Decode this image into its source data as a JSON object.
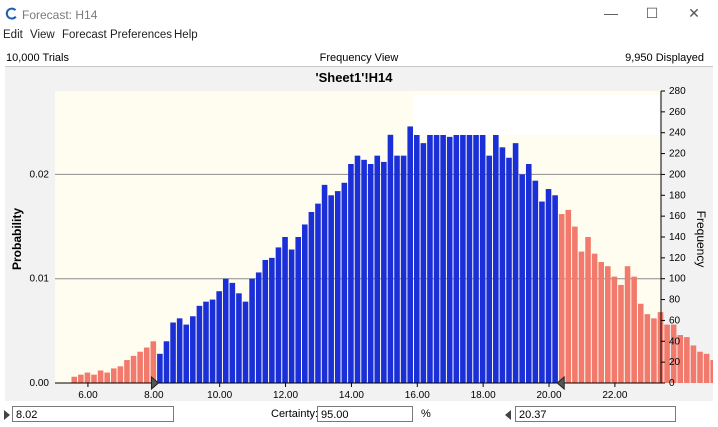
{
  "window": {
    "title": "Forecast: H14",
    "minimize": "—",
    "maximize": "☐",
    "close": "✕"
  },
  "menu": [
    "Edit",
    "View",
    "Forecast",
    "Preferences",
    "Help"
  ],
  "info": {
    "trials": "10,000 Trials",
    "view": "Frequency View",
    "displayed": "9,950 Displayed"
  },
  "colors": {
    "bar": "#1a2fd8",
    "tail": "#f27a6c",
    "plot_bg": "#fefdef",
    "panel_bg": "#f2f2f2"
  },
  "chart_data": {
    "type": "bar",
    "title": "'Sheet1'!H14",
    "ylabel": "Probability",
    "y2label": "Frequency",
    "xlim": [
      5.0,
      23.4
    ],
    "ylim": [
      0,
      280
    ],
    "xticks": [
      "6.00",
      "8.00",
      "10.00",
      "12.00",
      "14.00",
      "16.00",
      "18.00",
      "20.00",
      "22.00"
    ],
    "xtick_values": [
      6,
      8,
      10,
      12,
      14,
      16,
      18,
      20,
      22
    ],
    "yticks_left": [
      "0.00",
      "0.01",
      "0.02"
    ],
    "yticks_left_freq": [
      0,
      100,
      200
    ],
    "yticks_right": [
      "0",
      "20",
      "40",
      "60",
      "80",
      "100",
      "120",
      "140",
      "160",
      "180",
      "200",
      "220",
      "240",
      "260",
      "280"
    ],
    "grid": "horizontal at 0.01 and 0.02",
    "lower_bound": 8.02,
    "upper_bound": 20.37,
    "bin_start": 5.5,
    "bin_width": 0.2,
    "frequencies": [
      6,
      8,
      10,
      8,
      12,
      10,
      14,
      16,
      22,
      26,
      30,
      34,
      40,
      28,
      40,
      58,
      62,
      56,
      64,
      74,
      78,
      80,
      88,
      100,
      96,
      86,
      78,
      100,
      106,
      118,
      120,
      130,
      140,
      128,
      140,
      152,
      164,
      172,
      190,
      180,
      184,
      192,
      210,
      218,
      214,
      210,
      218,
      212,
      238,
      218,
      218,
      246,
      242,
      230,
      270,
      262,
      238,
      236,
      270,
      248,
      264,
      254,
      244,
      218,
      252,
      226,
      216,
      230,
      200,
      210,
      194,
      174,
      186,
      180,
      162,
      166,
      150,
      126,
      140,
      124,
      116,
      112,
      102,
      94,
      112,
      102,
      76,
      66,
      62,
      68,
      56,
      56,
      46,
      44,
      36,
      30,
      28,
      22,
      20,
      18,
      16,
      12,
      8,
      6,
      4,
      4
    ],
    "bar_tail_threshold_low": 8.02,
    "bar_tail_threshold_high": 20.37
  },
  "bottom": {
    "lower_value": "8.02",
    "certainty_label": "Certainty:",
    "certainty_value": "95.00",
    "percent": "%",
    "upper_value": "20.37"
  }
}
